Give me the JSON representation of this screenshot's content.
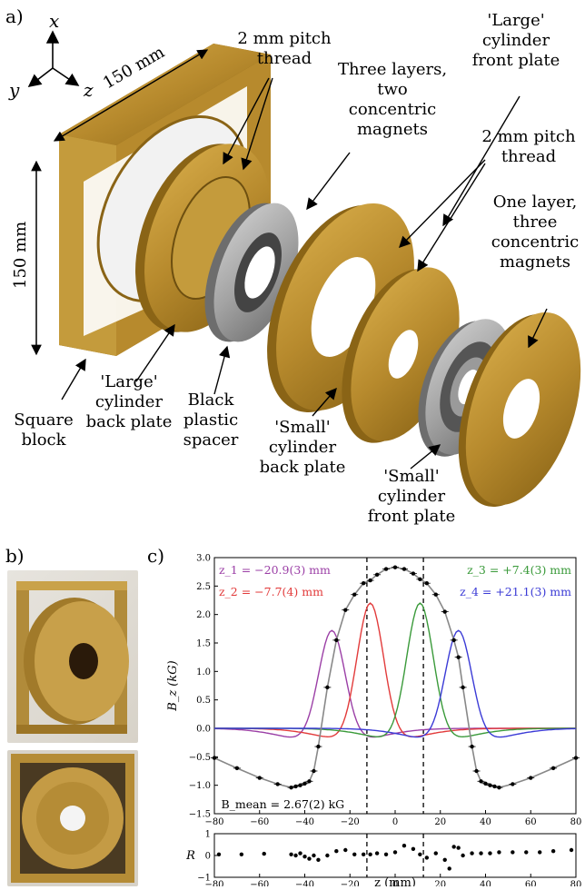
{
  "panel_a": {
    "label": "a)",
    "axes": {
      "x": "x",
      "y": "y",
      "z": "z"
    },
    "dim_width": "150 mm",
    "dim_height": "150 mm",
    "labels": {
      "pitch_1": [
        "2 mm pitch",
        "thread"
      ],
      "large_front": [
        "'Large'",
        "cylinder",
        "front plate"
      ],
      "three_layers": [
        "Three layers,",
        "two",
        "concentric",
        "magnets"
      ],
      "pitch_2": [
        "2 mm pitch",
        "thread"
      ],
      "one_layer": [
        "One layer,",
        "three",
        "concentric",
        "magnets"
      ],
      "square_block": [
        "Square",
        "block"
      ],
      "large_back": [
        "'Large'",
        "cylinder",
        "back plate"
      ],
      "spacer": [
        "Black",
        "plastic",
        "spacer"
      ],
      "small_back": [
        "'Small'",
        "cylinder",
        "back plate"
      ],
      "small_front": [
        "'Small'",
        "cylinder",
        "front plate"
      ]
    },
    "colors": {
      "brass": "#b78a2d",
      "steel": "#9a9a9a"
    }
  },
  "panel_b": {
    "label": "b)"
  },
  "panel_c": {
    "label": "c)"
  },
  "chart_data": {
    "type": "line",
    "top": {
      "xlim": [
        -80,
        80
      ],
      "ylim": [
        -1.5,
        3.0
      ],
      "ylabel": "B_z (kG)",
      "xticks": [
        "−80",
        "−60",
        "−40",
        "−20",
        "0",
        "20",
        "40",
        "60",
        "80"
      ],
      "yticks": [
        "−1.5",
        "−1.0",
        "−0.5",
        "0.0",
        "0.5",
        "1.0",
        "1.5",
        "2.0",
        "2.5",
        "3.0"
      ],
      "vlines": [
        -12.5,
        12.5
      ],
      "annotation": "B_mean = 2.67(2) kG",
      "series": [
        {
          "name": "z_1 = −20.9(3) mm",
          "color": "#9b3fa6",
          "center": -28,
          "peak": 1.72
        },
        {
          "name": "z_2 = −7.7(4) mm",
          "color": "#e23b3b",
          "center": -11,
          "peak": 2.2
        },
        {
          "name": "z_3 = +7.4(3) mm",
          "color": "#3a9a3a",
          "center": 11,
          "peak": 2.2
        },
        {
          "name": "z_4 = +21.1(3) mm",
          "color": "#3b3bd6",
          "center": 28,
          "peak": 1.72
        }
      ],
      "measured": {
        "x": [
          -80,
          -70,
          -60,
          -52,
          -46,
          -44,
          -42,
          -40,
          -38,
          -36,
          -34,
          -30,
          -26,
          -22,
          -18,
          -14,
          -11,
          -8,
          -4,
          0,
          4,
          8,
          11,
          14,
          18,
          22,
          26,
          28,
          30,
          34,
          36,
          38,
          40,
          42,
          44,
          46,
          52,
          60,
          70,
          80
        ],
        "y": [
          -0.52,
          -0.7,
          -0.87,
          -0.98,
          -1.04,
          -1.02,
          -1.0,
          -0.97,
          -0.93,
          -0.75,
          -0.32,
          0.72,
          1.55,
          2.08,
          2.35,
          2.55,
          2.6,
          2.7,
          2.8,
          2.83,
          2.8,
          2.72,
          2.62,
          2.55,
          2.35,
          2.05,
          1.55,
          1.25,
          0.72,
          -0.32,
          -0.75,
          -0.93,
          -0.97,
          -1.0,
          -1.02,
          -1.04,
          -0.98,
          -0.87,
          -0.7,
          -0.52
        ]
      }
    },
    "bottom": {
      "xlim": [
        -80,
        80
      ],
      "ylim": [
        -1,
        1
      ],
      "ylabel": "R",
      "xlabel": "z (mm)",
      "xticks": [
        "−80",
        "−60",
        "−40",
        "−20",
        "0",
        "20",
        "40",
        "60",
        "80"
      ],
      "yticks": [
        "−1",
        "0",
        "1"
      ],
      "residuals": {
        "x": [
          -78,
          -68,
          -58,
          -46,
          -44,
          -42,
          -40,
          -38,
          -36,
          -34,
          -30,
          -26,
          -22,
          -18,
          -14,
          -11,
          -8,
          -4,
          0,
          4,
          8,
          11,
          14,
          18,
          22,
          24,
          26,
          28,
          30,
          34,
          38,
          42,
          46,
          52,
          58,
          64,
          70,
          78
        ],
        "y": [
          0.05,
          0.05,
          0.08,
          0.05,
          0.0,
          0.1,
          -0.05,
          -0.15,
          0.0,
          -0.2,
          0.0,
          0.2,
          0.25,
          0.05,
          0.05,
          0.05,
          0.1,
          0.05,
          0.15,
          0.45,
          0.3,
          0.05,
          -0.1,
          0.1,
          -0.2,
          -0.6,
          0.4,
          0.35,
          0.0,
          0.1,
          0.1,
          0.1,
          0.15,
          0.15,
          0.15,
          0.15,
          0.2,
          0.25
        ]
      }
    }
  }
}
